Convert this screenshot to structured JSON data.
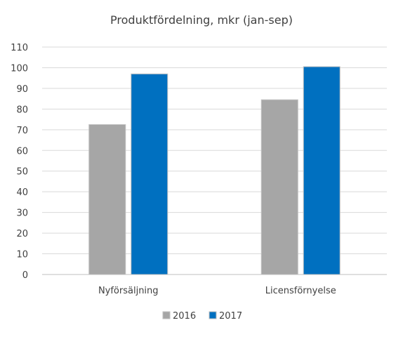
{
  "chart_data": {
    "type": "bar",
    "title": "Produktfördelning, mkr (jan-sep)",
    "categories": [
      "Nyförsäljning",
      "Licensförnyelse"
    ],
    "series": [
      {
        "name": "2016",
        "values": [
          72.5,
          84.5
        ],
        "color": "#a6a6a6"
      },
      {
        "name": "2017",
        "values": [
          97,
          100.5
        ],
        "color": "#0070c0"
      }
    ],
    "ylim": [
      0,
      110
    ],
    "yticks": [
      "0",
      "10",
      "20",
      "30",
      "40",
      "50",
      "60",
      "70",
      "80",
      "90",
      "100",
      "110"
    ],
    "grid": true,
    "legend": "bottom"
  }
}
